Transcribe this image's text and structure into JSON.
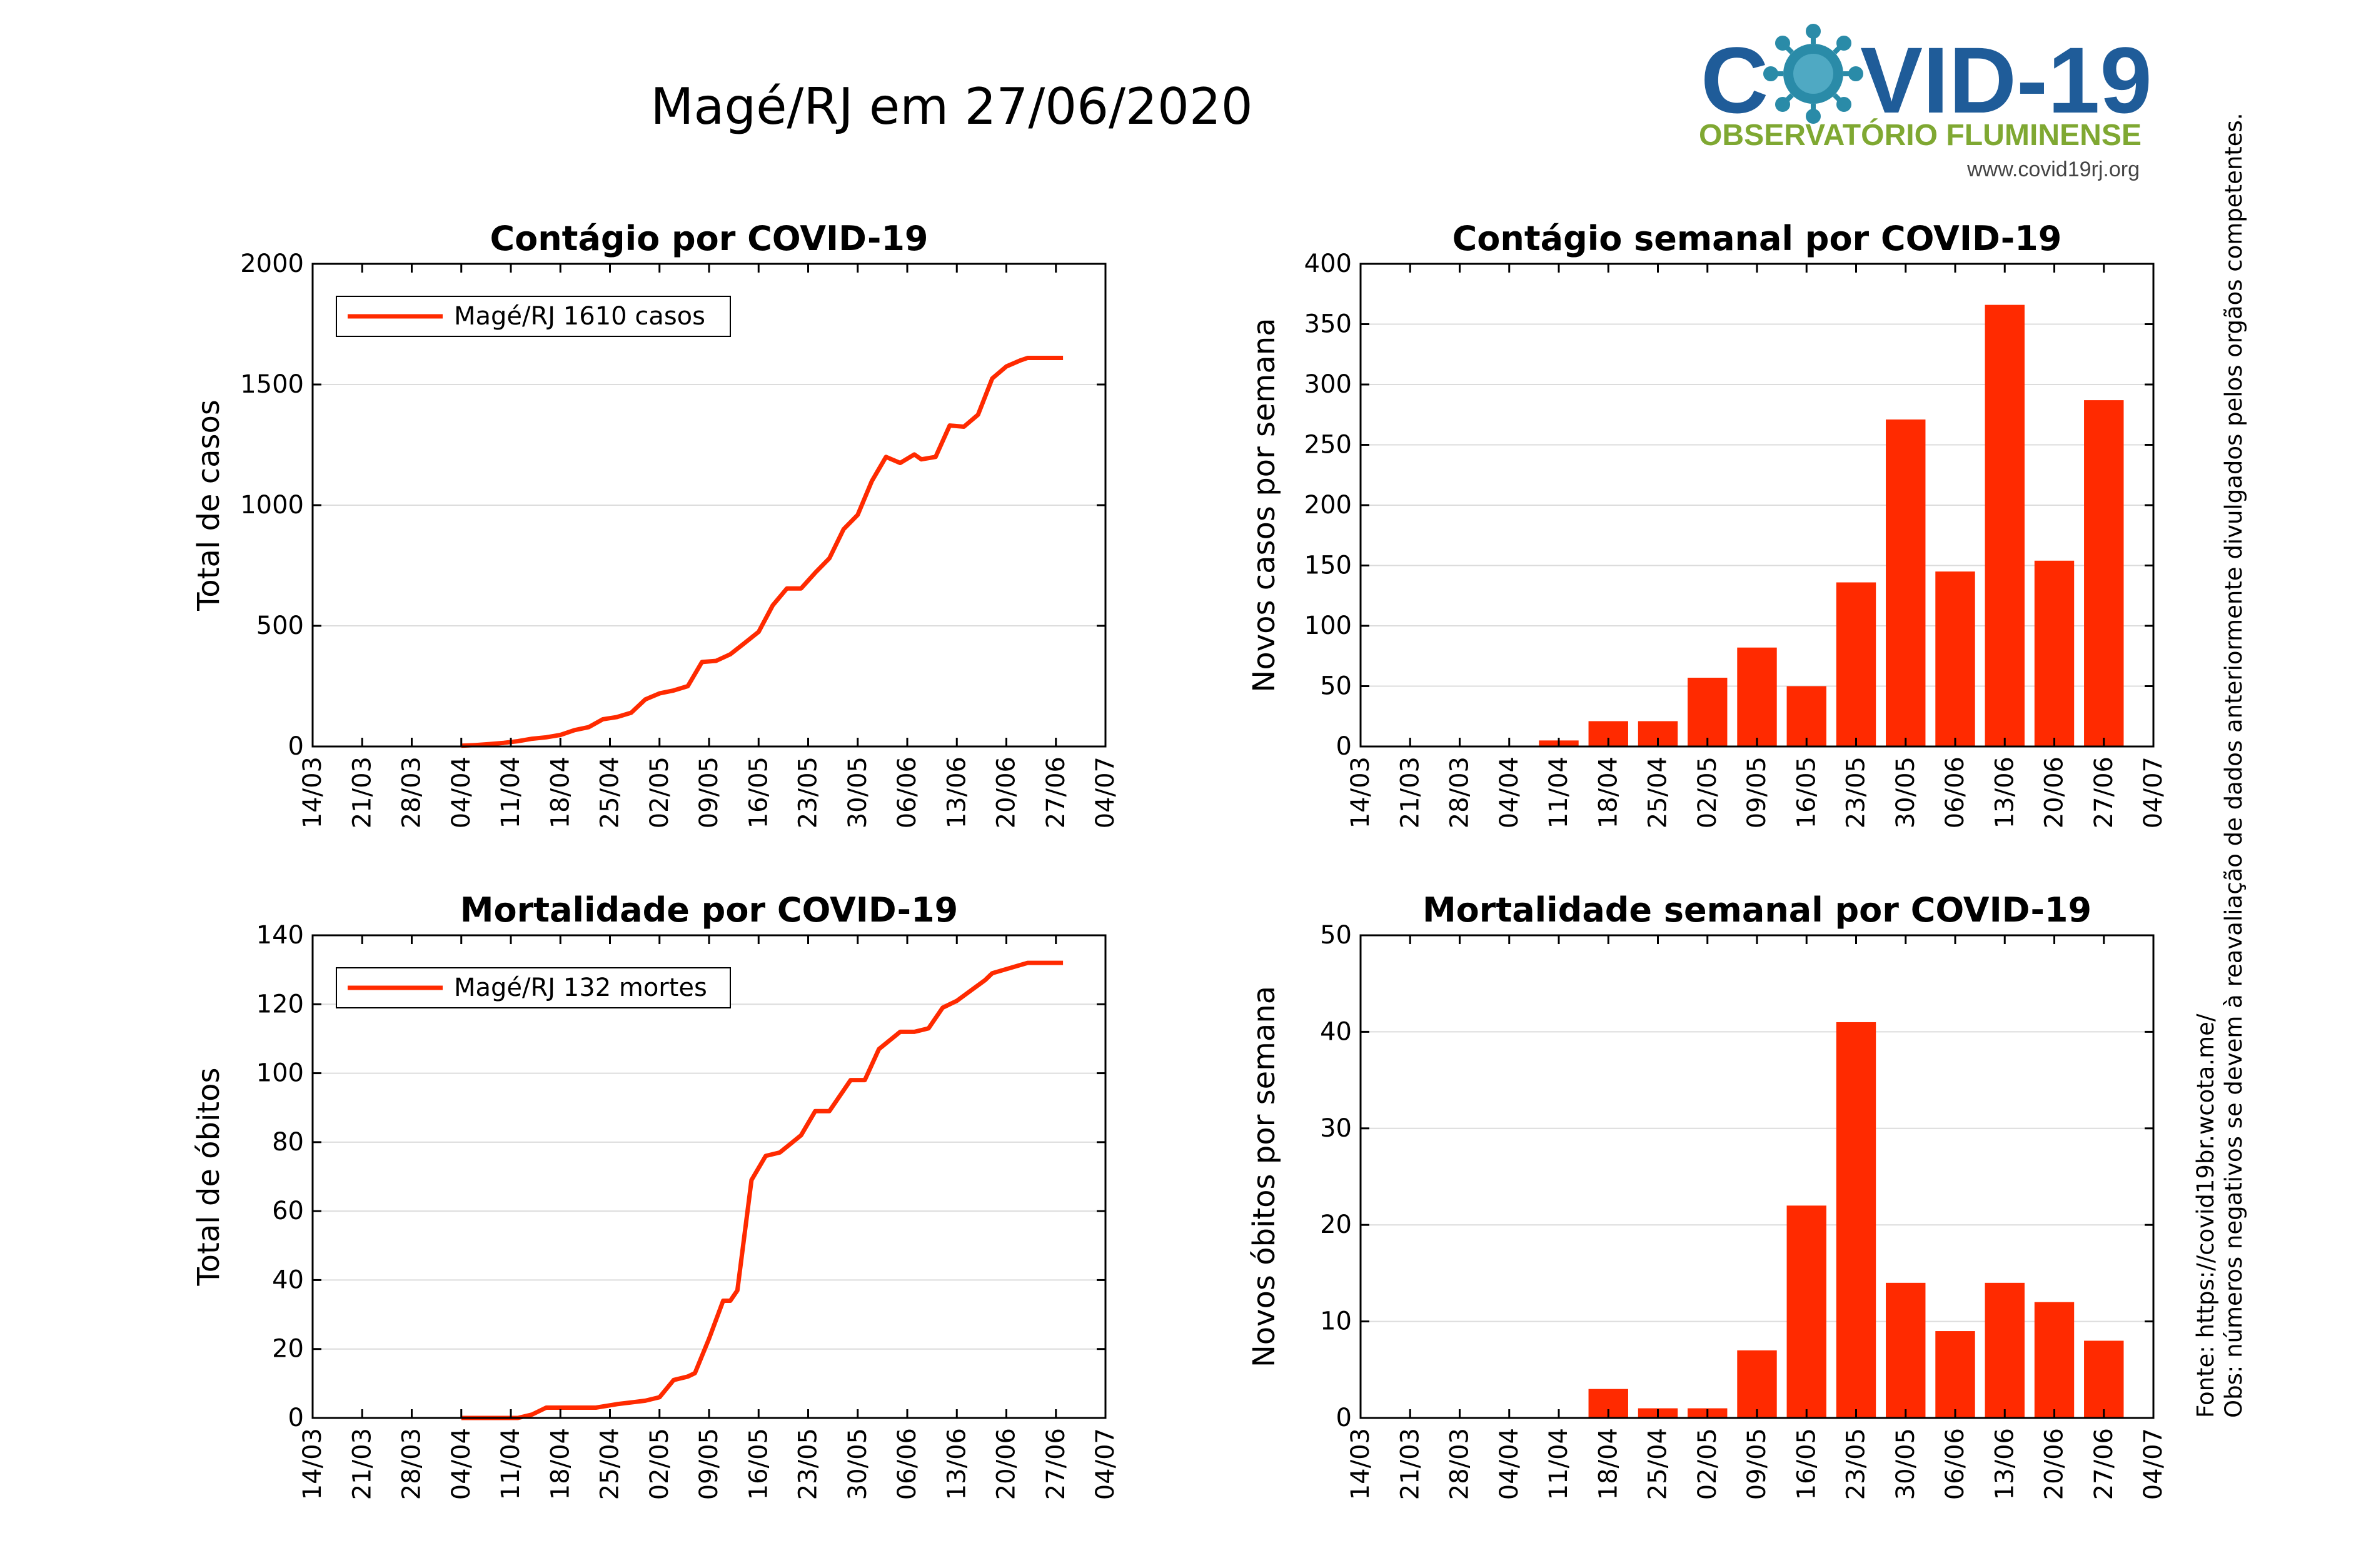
{
  "page": {
    "title": "Magé/RJ em 27/06/2020",
    "logo": {
      "text_left": "C",
      "text_right": "VID-19",
      "subtitle": "OBSERVATÓRIO FLUMINENSE",
      "url": "www.covid19rj.org",
      "colors": {
        "blue": "#1f5c99",
        "green": "#7fa832",
        "virus": "#2a8ba8"
      }
    },
    "side_note_1": "Obs: números negativos se devem à reavaliação de dados anteriormente divulgados pelos orgãos competentes.",
    "side_note_2": "Fonte: https://covid19br.wcota.me/",
    "accent_color": "#ff2a00"
  },
  "chart_data": [
    {
      "type": "line",
      "title": "Contágio por COVID-19",
      "ylabel": "Total de casos",
      "xlabel": "",
      "ylim": [
        0,
        2000
      ],
      "yticks": [
        0,
        500,
        1000,
        1500,
        2000
      ],
      "xticks": [
        "14/03",
        "21/03",
        "28/03",
        "04/04",
        "11/04",
        "18/04",
        "25/04",
        "02/05",
        "09/05",
        "16/05",
        "23/05",
        "30/05",
        "06/06",
        "13/06",
        "20/06",
        "27/06",
        "04/07"
      ],
      "grid": true,
      "legend": {
        "position": "top-left",
        "label": "Magé/RJ  1610 casos"
      },
      "series": [
        {
          "name": "Magé/RJ",
          "color": "#ff2a00",
          "x": [
            21,
            23,
            25,
            27,
            29,
            31,
            33,
            35,
            37,
            39,
            41,
            43,
            45,
            47,
            49,
            51,
            53,
            55,
            57,
            59,
            61,
            63,
            65,
            67,
            69,
            71,
            73,
            75,
            77,
            79,
            81,
            83,
            85,
            86,
            88,
            90,
            92,
            94,
            96,
            98,
            100,
            101,
            103,
            104,
            106
          ],
          "y": [
            3,
            6,
            10,
            15,
            22,
            32,
            38,
            48,
            68,
            80,
            113,
            122,
            140,
            195,
            220,
            232,
            250,
            350,
            355,
            382,
            428,
            475,
            585,
            655,
            655,
            720,
            780,
            900,
            960,
            1100,
            1200,
            1175,
            1210,
            1190,
            1200,
            1330,
            1325,
            1375,
            1525,
            1575,
            1600,
            1610,
            1610,
            1610,
            1610
          ]
        }
      ]
    },
    {
      "type": "bar",
      "title": "Contágio semanal por COVID-19",
      "ylabel": "Novos casos por semana",
      "xlabel": "",
      "ylim": [
        0,
        400
      ],
      "yticks": [
        0,
        50,
        100,
        150,
        200,
        250,
        300,
        350,
        400
      ],
      "xticks": [
        "14/03",
        "21/03",
        "28/03",
        "04/04",
        "11/04",
        "18/04",
        "25/04",
        "02/05",
        "09/05",
        "16/05",
        "23/05",
        "30/05",
        "06/06",
        "13/06",
        "20/06",
        "27/06",
        "04/07"
      ],
      "grid": true,
      "categories": [
        "11/04",
        "18/04",
        "25/04",
        "02/05",
        "09/05",
        "16/05",
        "23/05",
        "30/05",
        "06/06",
        "13/06",
        "20/06",
        "27/06"
      ],
      "values": [
        5,
        21,
        21,
        57,
        82,
        50,
        136,
        271,
        145,
        366,
        154,
        287
      ]
    },
    {
      "type": "line",
      "title": "Mortalidade por COVID-19",
      "ylabel": "Total de óbitos",
      "xlabel": "",
      "ylim": [
        0,
        140
      ],
      "yticks": [
        0,
        20,
        40,
        60,
        80,
        100,
        120,
        140
      ],
      "xticks": [
        "14/03",
        "21/03",
        "28/03",
        "04/04",
        "11/04",
        "18/04",
        "25/04",
        "02/05",
        "09/05",
        "16/05",
        "23/05",
        "30/05",
        "06/06",
        "13/06",
        "20/06",
        "27/06",
        "04/07"
      ],
      "grid": true,
      "legend": {
        "position": "top-left",
        "label": "Magé/RJ  132 mortes"
      },
      "series": [
        {
          "name": "Magé/RJ",
          "color": "#ff2a00",
          "x": [
            21,
            29,
            31,
            33,
            40,
            43,
            47,
            49,
            51,
            53,
            54,
            56,
            58,
            59,
            60,
            62,
            64,
            66,
            69,
            71,
            73,
            76,
            77,
            78,
            80,
            83,
            84,
            85,
            87,
            89,
            91,
            93,
            95,
            96,
            101,
            102,
            103,
            104,
            106
          ],
          "y": [
            0,
            0,
            1,
            3,
            3,
            4,
            5,
            6,
            11,
            12,
            13,
            23,
            34,
            34,
            37,
            69,
            76,
            77,
            82,
            89,
            89,
            98,
            98,
            98,
            107,
            112,
            112,
            112,
            113,
            119,
            121,
            124,
            127,
            129,
            132,
            132,
            132,
            132,
            132
          ]
        }
      ]
    },
    {
      "type": "bar",
      "title": "Mortalidade semanal por COVID-19",
      "ylabel": "Novos óbitos por semana",
      "xlabel": "",
      "ylim": [
        0,
        50
      ],
      "yticks": [
        0,
        10,
        20,
        30,
        40,
        50
      ],
      "xticks": [
        "14/03",
        "21/03",
        "28/03",
        "04/04",
        "11/04",
        "18/04",
        "25/04",
        "02/05",
        "09/05",
        "16/05",
        "23/05",
        "30/05",
        "06/06",
        "13/06",
        "20/06",
        "27/06",
        "04/07"
      ],
      "grid": true,
      "categories": [
        "18/04",
        "25/04",
        "02/05",
        "09/05",
        "16/05",
        "23/05",
        "30/05",
        "06/06",
        "13/06",
        "20/06",
        "27/06"
      ],
      "values": [
        3,
        1,
        1,
        7,
        22,
        41,
        14,
        9,
        14,
        12,
        8
      ]
    }
  ]
}
